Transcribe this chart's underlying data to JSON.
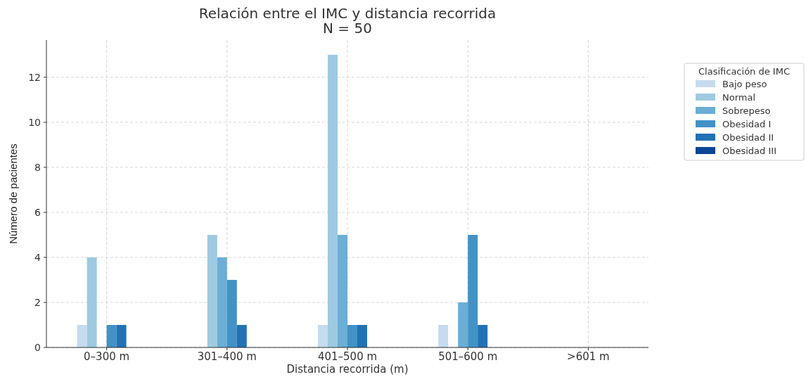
{
  "chart_data": {
    "type": "bar",
    "title": "Relación entre el IMC y distancia recorrida\nN = 50",
    "xlabel": "Distancia recorrida (m)",
    "ylabel": "Número de pacientes",
    "legend_title": "Clasificación de IMC",
    "categories": [
      "0–300 m",
      "301–400 m",
      "401–500 m",
      "501–600 m",
      ">601 m"
    ],
    "series": [
      {
        "name": "Bajo peso",
        "color": "#c6dbef",
        "values": [
          1,
          0,
          1,
          1,
          0
        ]
      },
      {
        "name": "Normal",
        "color": "#9ecae1",
        "values": [
          4,
          5,
          13,
          0,
          0
        ]
      },
      {
        "name": "Sobrepeso",
        "color": "#6baed6",
        "values": [
          0,
          4,
          5,
          2,
          0
        ]
      },
      {
        "name": "Obesidad I",
        "color": "#4292c6",
        "values": [
          1,
          3,
          1,
          5,
          0
        ]
      },
      {
        "name": "Obesidad II",
        "color": "#2171b5",
        "values": [
          1,
          1,
          1,
          1,
          0
        ]
      },
      {
        "name": "Obesidad III",
        "color": "#084594",
        "values": [
          0,
          0,
          0,
          0,
          0
        ]
      }
    ],
    "ylim": [
      0,
      13.65
    ],
    "yticks": [
      0,
      2,
      4,
      6,
      8,
      10,
      12
    ],
    "grid": true,
    "legend": "right"
  }
}
